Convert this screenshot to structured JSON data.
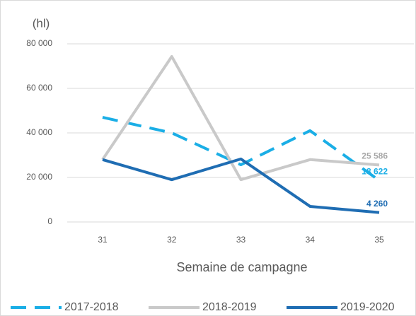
{
  "chart_data": {
    "type": "line",
    "y_label": "(hl)",
    "x_label": "Semaine de campagne",
    "categories": [
      "31",
      "32",
      "33",
      "34",
      "35"
    ],
    "series": [
      {
        "name": "2017-2018",
        "color": "#1aaee6",
        "dashed": true,
        "values": [
          47000,
          40000,
          25700,
          41000,
          18622
        ],
        "value_labels": [
          null,
          null,
          null,
          null,
          "18 622"
        ]
      },
      {
        "name": "2018-2019",
        "color": "#c9c9c9",
        "dashed": false,
        "values": [
          28000,
          74300,
          19000,
          28000,
          25586
        ],
        "value_labels": [
          null,
          null,
          null,
          null,
          "25 586"
        ]
      },
      {
        "name": "2019-2020",
        "color": "#1f6db3",
        "dashed": false,
        "values": [
          28000,
          19000,
          28300,
          7000,
          4260
        ],
        "value_labels": [
          null,
          null,
          null,
          null,
          "4 260"
        ]
      }
    ],
    "ylim": [
      0,
      80000
    ],
    "yticks": [
      0,
      {
        "value": 20000,
        "label": "20 000"
      },
      {
        "value": 40000,
        "label": "40 000"
      },
      {
        "value": 60000,
        "label": "60 000"
      },
      {
        "value": 80000,
        "label": "80 000"
      }
    ],
    "grid": true,
    "legend": "bottom"
  }
}
